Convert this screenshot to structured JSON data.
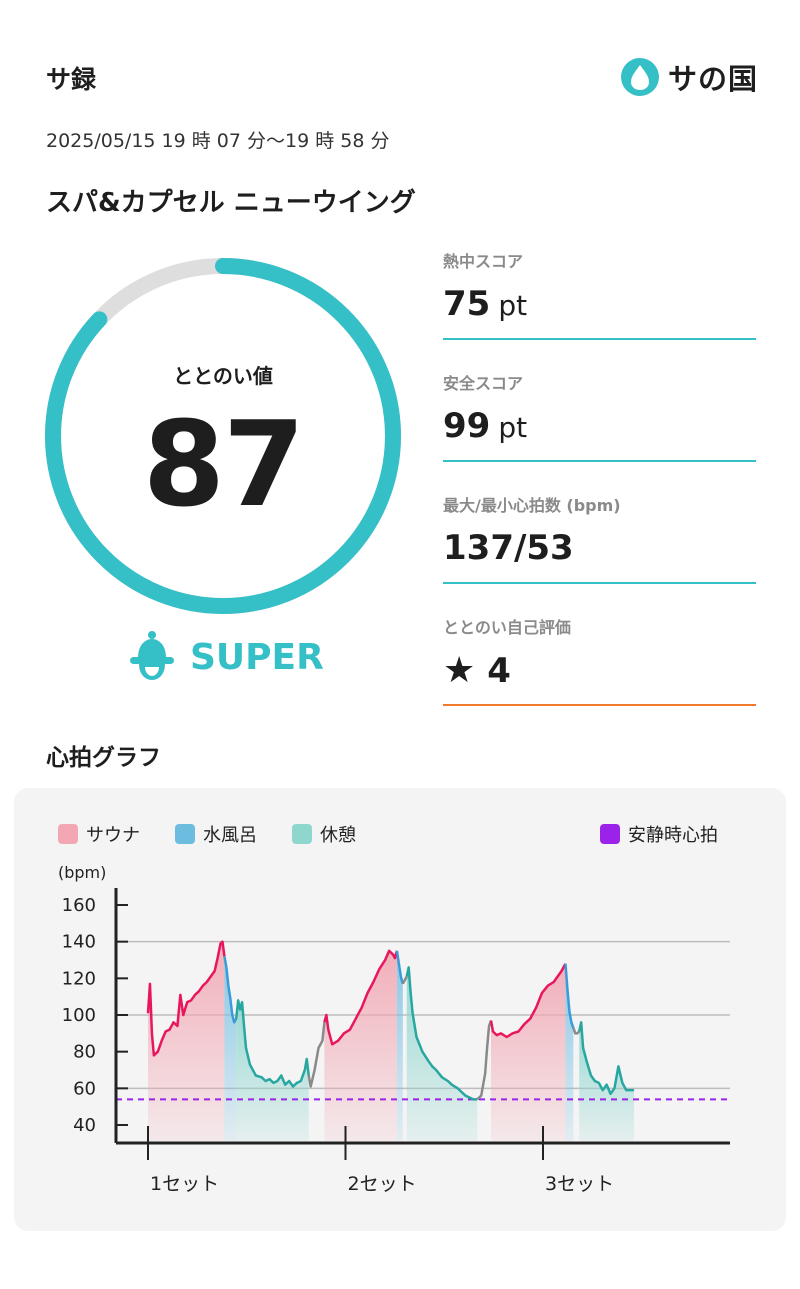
{
  "header": {
    "title": "サ録",
    "logo_text": "サの国"
  },
  "session": {
    "datetime": "2025/05/15 19 時 07 分〜19 時 58 分",
    "facility": "スパ&カプセル ニューウイング"
  },
  "totonoi": {
    "label": "ととのい値",
    "value": "87",
    "progress": 0.87,
    "rank": "SUPER"
  },
  "stats": [
    {
      "label": "熱中スコア",
      "value": "75",
      "unit": "pt"
    },
    {
      "label": "安全スコア",
      "value": "99",
      "unit": "pt"
    },
    {
      "label": "最大/最小心拍数 (bpm)",
      "value": "137/53",
      "unit": ""
    },
    {
      "label": "ととのい自己評価",
      "value": "4",
      "unit": ""
    }
  ],
  "heart_graph": {
    "title": "心拍グラフ"
  },
  "colors": {
    "accent": "#35bfc6",
    "sauna": "#e8175d",
    "sauna_fill": "#f2a7b3",
    "water": "#3a9bd9",
    "water_fill": "#7cc2e4",
    "rest": "#27a7a0",
    "rest_fill": "#8fd6cf",
    "transition": "#8a8a8a",
    "resting_hr": "#9b22e8",
    "self_rating_line": "#f07b2e"
  },
  "chart_data": {
    "type": "line",
    "ylabel": "(bpm)",
    "ylim": [
      30,
      165
    ],
    "yticks": [
      40,
      60,
      80,
      100,
      120,
      140,
      160
    ],
    "xticks": [
      "1セット",
      "2セット",
      "3セット"
    ],
    "legend": [
      {
        "name": "サウナ",
        "color": "#f2a7b3"
      },
      {
        "name": "水風呂",
        "color": "#6cbce0"
      },
      {
        "name": "休憩",
        "color": "#8fd6cf"
      },
      {
        "name": "安静時心拍",
        "color": "#9b22e8"
      }
    ],
    "resting_hr": 54,
    "grid": true,
    "segments": [
      {
        "kind": "sauna",
        "points": [
          [
            0,
            101
          ],
          [
            0.02,
            117
          ],
          [
            0.04,
            90
          ],
          [
            0.06,
            78
          ],
          [
            0.1,
            80
          ],
          [
            0.14,
            86
          ],
          [
            0.18,
            91
          ],
          [
            0.22,
            92
          ],
          [
            0.26,
            96
          ],
          [
            0.3,
            94
          ],
          [
            0.33,
            111
          ],
          [
            0.36,
            100
          ],
          [
            0.4,
            107
          ],
          [
            0.44,
            108
          ],
          [
            0.48,
            111
          ],
          [
            0.52,
            113
          ],
          [
            0.56,
            116
          ],
          [
            0.6,
            118
          ],
          [
            0.64,
            121
          ],
          [
            0.68,
            124
          ],
          [
            0.71,
            131
          ],
          [
            0.74,
            139
          ],
          [
            0.76,
            140
          ],
          [
            0.78,
            132
          ]
        ]
      },
      {
        "kind": "water",
        "points": [
          [
            0.78,
            132
          ],
          [
            0.8,
            126
          ],
          [
            0.82,
            116
          ],
          [
            0.84,
            109
          ],
          [
            0.86,
            100
          ],
          [
            0.88,
            96
          ],
          [
            0.9,
            98
          ]
        ]
      },
      {
        "kind": "rest",
        "points": [
          [
            0.9,
            98
          ],
          [
            0.92,
            108
          ],
          [
            0.94,
            103
          ],
          [
            0.96,
            107
          ],
          [
            0.98,
            94
          ],
          [
            1.0,
            82
          ],
          [
            1.04,
            73
          ],
          [
            1.1,
            67
          ],
          [
            1.16,
            66
          ],
          [
            1.2,
            64
          ],
          [
            1.24,
            65
          ],
          [
            1.28,
            63
          ],
          [
            1.32,
            64
          ],
          [
            1.36,
            67
          ],
          [
            1.4,
            62
          ],
          [
            1.44,
            64
          ],
          [
            1.48,
            61
          ],
          [
            1.52,
            63
          ],
          [
            1.56,
            64
          ],
          [
            1.6,
            70
          ],
          [
            1.62,
            76
          ],
          [
            1.64,
            67
          ]
        ]
      },
      {
        "kind": "transition",
        "points": [
          [
            1.64,
            67
          ],
          [
            1.66,
            61
          ],
          [
            1.7,
            70
          ],
          [
            1.74,
            82
          ],
          [
            1.78,
            86
          ],
          [
            1.8,
            96
          ]
        ]
      },
      {
        "kind": "sauna",
        "points": [
          [
            1.8,
            96
          ],
          [
            1.82,
            100
          ],
          [
            1.84,
            92
          ],
          [
            1.88,
            84
          ],
          [
            1.94,
            86
          ],
          [
            2.0,
            90
          ],
          [
            2.06,
            92
          ],
          [
            2.12,
            98
          ],
          [
            2.18,
            104
          ],
          [
            2.24,
            112
          ],
          [
            2.3,
            118
          ],
          [
            2.36,
            125
          ],
          [
            2.42,
            130
          ],
          [
            2.46,
            135
          ],
          [
            2.5,
            133
          ],
          [
            2.52,
            131
          ],
          [
            2.54,
            135
          ]
        ]
      },
      {
        "kind": "water",
        "points": [
          [
            2.54,
            135
          ],
          [
            2.56,
            128
          ],
          [
            2.58,
            121
          ],
          [
            2.6,
            117
          ]
        ]
      },
      {
        "kind": "transition",
        "points": [
          [
            2.6,
            117
          ],
          [
            2.62,
            119
          ],
          [
            2.64,
            121
          ]
        ]
      },
      {
        "kind": "rest",
        "points": [
          [
            2.64,
            121
          ],
          [
            2.66,
            126
          ],
          [
            2.68,
            112
          ],
          [
            2.7,
            101
          ],
          [
            2.74,
            88
          ],
          [
            2.8,
            80
          ],
          [
            2.86,
            75
          ],
          [
            2.9,
            72
          ],
          [
            2.94,
            70
          ],
          [
            3.0,
            66
          ],
          [
            3.06,
            64
          ],
          [
            3.1,
            62
          ],
          [
            3.16,
            60
          ],
          [
            3.2,
            58
          ],
          [
            3.24,
            56
          ],
          [
            3.28,
            55
          ],
          [
            3.32,
            54
          ],
          [
            3.36,
            54
          ]
        ]
      },
      {
        "kind": "transition",
        "points": [
          [
            3.36,
            54
          ],
          [
            3.4,
            56
          ],
          [
            3.44,
            68
          ],
          [
            3.46,
            82
          ],
          [
            3.48,
            94
          ],
          [
            3.5,
            97
          ]
        ]
      },
      {
        "kind": "sauna",
        "points": [
          [
            3.5,
            97
          ],
          [
            3.52,
            91
          ],
          [
            3.56,
            89
          ],
          [
            3.6,
            90
          ],
          [
            3.66,
            88
          ],
          [
            3.72,
            90
          ],
          [
            3.78,
            91
          ],
          [
            3.84,
            95
          ],
          [
            3.9,
            98
          ],
          [
            3.96,
            104
          ],
          [
            4.02,
            112
          ],
          [
            4.08,
            116
          ],
          [
            4.14,
            118
          ],
          [
            4.18,
            121
          ],
          [
            4.22,
            124
          ],
          [
            4.26,
            128
          ]
        ]
      },
      {
        "kind": "water",
        "points": [
          [
            4.26,
            128
          ],
          [
            4.28,
            114
          ],
          [
            4.3,
            102
          ],
          [
            4.32,
            96
          ],
          [
            4.34,
            93
          ]
        ]
      },
      {
        "kind": "transition",
        "points": [
          [
            4.34,
            93
          ],
          [
            4.36,
            90
          ],
          [
            4.38,
            90
          ],
          [
            4.4,
            91
          ]
        ]
      },
      {
        "kind": "rest",
        "points": [
          [
            4.4,
            91
          ],
          [
            4.42,
            96
          ],
          [
            4.44,
            82
          ],
          [
            4.48,
            74
          ],
          [
            4.52,
            67
          ],
          [
            4.56,
            64
          ],
          [
            4.6,
            63
          ],
          [
            4.64,
            59
          ],
          [
            4.68,
            62
          ],
          [
            4.72,
            57
          ],
          [
            4.76,
            60
          ],
          [
            4.8,
            72
          ],
          [
            4.84,
            63
          ],
          [
            4.88,
            59
          ],
          [
            4.92,
            59
          ],
          [
            4.96,
            59
          ]
        ]
      }
    ]
  }
}
